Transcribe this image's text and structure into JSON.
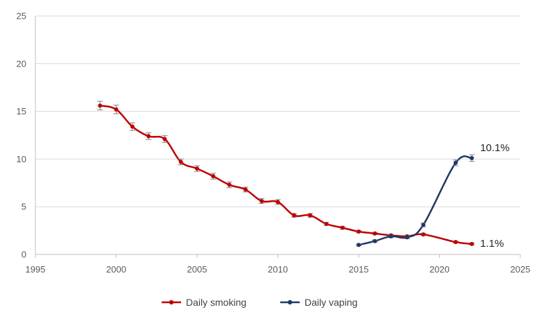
{
  "chart_data": {
    "type": "line",
    "title": "",
    "xlabel": "",
    "ylabel": "",
    "xlim": [
      1995,
      2025
    ],
    "ylim": [
      0,
      25
    ],
    "xticks": [
      1995,
      2000,
      2005,
      2010,
      2015,
      2020,
      2025
    ],
    "yticks": [
      0,
      5,
      10,
      15,
      20,
      25
    ],
    "grid": "horizontal",
    "legend_position": "bottom",
    "error_bars": true,
    "series": [
      {
        "name": "Daily smoking",
        "color": "#c00000",
        "end_label": "1.1%",
        "points": [
          {
            "x": 1999,
            "y": 15.6,
            "err": 0.45
          },
          {
            "x": 2000,
            "y": 15.2,
            "err": 0.45
          },
          {
            "x": 2001,
            "y": 13.4,
            "err": 0.4
          },
          {
            "x": 2002,
            "y": 12.4,
            "err": 0.35
          },
          {
            "x": 2003,
            "y": 12.1,
            "err": 0.35
          },
          {
            "x": 2004,
            "y": 9.7,
            "err": 0.3
          },
          {
            "x": 2005,
            "y": 9.0,
            "err": 0.3
          },
          {
            "x": 2006,
            "y": 8.2,
            "err": 0.3
          },
          {
            "x": 2007,
            "y": 7.3,
            "err": 0.3
          },
          {
            "x": 2008,
            "y": 6.8,
            "err": 0.25
          },
          {
            "x": 2009,
            "y": 5.6,
            "err": 0.25
          },
          {
            "x": 2010,
            "y": 5.5,
            "err": 0.25
          },
          {
            "x": 2011,
            "y": 4.1,
            "err": 0.2
          },
          {
            "x": 2012,
            "y": 4.1,
            "err": 0.2
          },
          {
            "x": 2013,
            "y": 3.2,
            "err": 0.15
          },
          {
            "x": 2014,
            "y": 2.8,
            "err": 0.15
          },
          {
            "x": 2015,
            "y": 2.4,
            "err": 0.12
          },
          {
            "x": 2016,
            "y": 2.2,
            "err": 0.12
          },
          {
            "x": 2017,
            "y": 2.0,
            "err": 0.12
          },
          {
            "x": 2018,
            "y": 1.9,
            "err": 0.12
          },
          {
            "x": 2019,
            "y": 2.1,
            "err": 0.12
          },
          {
            "x": 2021,
            "y": 1.3,
            "err": 0.1
          },
          {
            "x": 2022,
            "y": 1.1,
            "err": 0.1
          }
        ]
      },
      {
        "name": "Daily vaping",
        "color": "#1f3864",
        "end_label": "10.1%",
        "points": [
          {
            "x": 2015,
            "y": 1.0,
            "err": 0.1
          },
          {
            "x": 2016,
            "y": 1.4,
            "err": 0.12
          },
          {
            "x": 2017,
            "y": 1.9,
            "err": 0.15
          },
          {
            "x": 2018,
            "y": 1.8,
            "err": 0.15
          },
          {
            "x": 2019,
            "y": 3.1,
            "err": 0.2
          },
          {
            "x": 2021,
            "y": 9.6,
            "err": 0.3
          },
          {
            "x": 2022,
            "y": 10.1,
            "err": 0.35
          }
        ]
      }
    ]
  }
}
